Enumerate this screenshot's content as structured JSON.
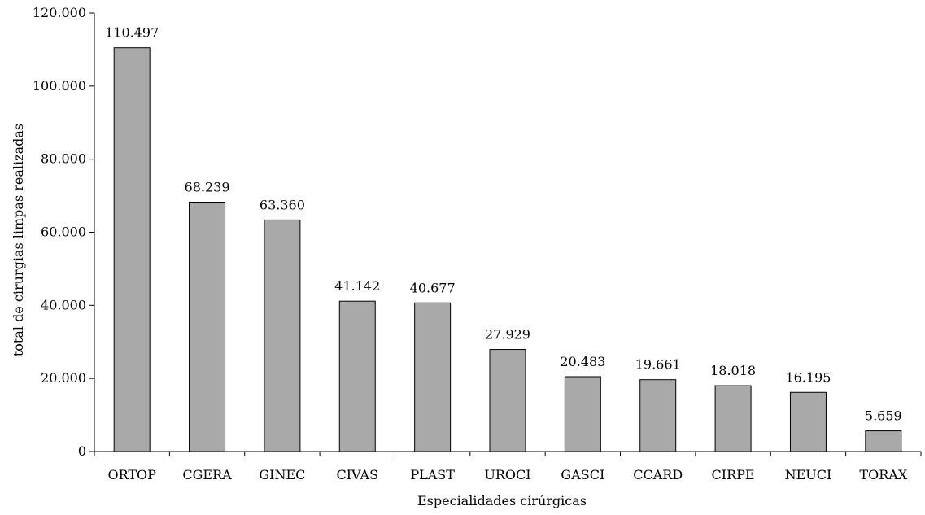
{
  "chart_data": {
    "type": "bar",
    "title": "",
    "xlabel": "Especialidades cirúrgicas",
    "ylabel": "total de cirurgias limpas realizadas",
    "ylim": [
      0,
      120000
    ],
    "yticks": [
      0,
      20000,
      40000,
      60000,
      80000,
      100000,
      120000
    ],
    "ytick_labels": [
      "0",
      "20.000",
      "40.000",
      "60.000",
      "80.000",
      "100.000",
      "120.000"
    ],
    "categories": [
      "ORTOP",
      "CGERA",
      "GINEC",
      "CIVAS",
      "PLAST",
      "UROCI",
      "GASCI",
      "CCARD",
      "CIRPE",
      "NEUCI",
      "TORAX"
    ],
    "values": [
      110497,
      68239,
      63360,
      41142,
      40677,
      27929,
      20483,
      19661,
      18018,
      16195,
      5659
    ],
    "data_labels": [
      "110.497",
      "68.239",
      "63.360",
      "41.142",
      "40.677",
      "27.929",
      "20.483",
      "19.661",
      "18.018",
      "16.195",
      "5.659"
    ],
    "grid": false,
    "legend": "none",
    "bar_color": "#a9a9a9",
    "bar_edge_color": "#000000"
  }
}
